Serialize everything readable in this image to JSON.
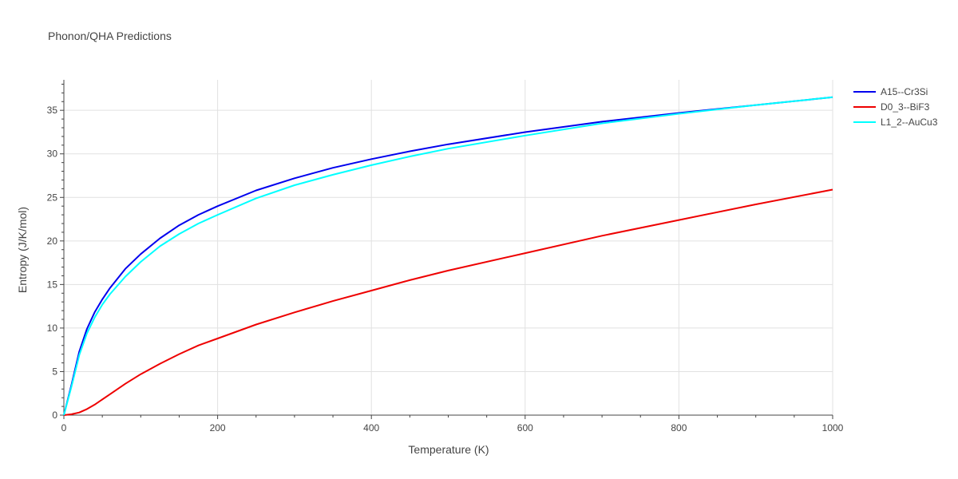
{
  "chart_data": {
    "type": "line",
    "title": "Phonon/QHA Predictions",
    "xlabel": "Temperature (K)",
    "ylabel": "Entropy (J/K/mol)",
    "xlim": [
      0,
      1000
    ],
    "ylim": [
      0,
      38.5
    ],
    "xticks": [
      0,
      200,
      400,
      600,
      800,
      1000
    ],
    "xtick_labels": [
      "0",
      "200",
      "400",
      "600",
      "800",
      "1000"
    ],
    "yticks": [
      0,
      5,
      10,
      15,
      20,
      25,
      30,
      35
    ],
    "ytick_labels": [
      "0",
      "5",
      "10",
      "15",
      "20",
      "25",
      "30",
      "35"
    ],
    "grid": true,
    "legend_position": "top-right",
    "series": [
      {
        "name": "A15--Cr3Si",
        "color": "#0000ee",
        "x": [
          0,
          10,
          20,
          30,
          40,
          50,
          60,
          80,
          100,
          125,
          150,
          175,
          200,
          250,
          300,
          350,
          400,
          450,
          500,
          600,
          700,
          800,
          900,
          1000
        ],
        "y": [
          0,
          3.5,
          7.3,
          9.9,
          11.8,
          13.3,
          14.6,
          16.8,
          18.5,
          20.3,
          21.8,
          23.0,
          24.0,
          25.8,
          27.2,
          28.4,
          29.4,
          30.3,
          31.1,
          32.5,
          33.7,
          34.7,
          35.6,
          36.5
        ]
      },
      {
        "name": "D0_3--BiF3",
        "color": "#ee0000",
        "x": [
          0,
          10,
          20,
          30,
          40,
          60,
          80,
          100,
          125,
          150,
          175,
          200,
          250,
          300,
          350,
          400,
          450,
          500,
          600,
          700,
          800,
          900,
          1000
        ],
        "y": [
          0,
          0.1,
          0.3,
          0.7,
          1.2,
          2.4,
          3.6,
          4.7,
          5.9,
          7.0,
          8.0,
          8.8,
          10.4,
          11.8,
          13.1,
          14.3,
          15.5,
          16.6,
          18.6,
          20.6,
          22.4,
          24.2,
          25.9
        ]
      },
      {
        "name": "L1_2--AuCu3",
        "color": "#00ffff",
        "x": [
          0,
          10,
          20,
          30,
          40,
          50,
          60,
          80,
          100,
          125,
          150,
          175,
          200,
          250,
          300,
          350,
          400,
          450,
          500,
          600,
          700,
          800,
          900,
          1000
        ],
        "y": [
          0,
          3.3,
          6.9,
          9.4,
          11.2,
          12.7,
          13.9,
          15.9,
          17.6,
          19.4,
          20.8,
          22.0,
          23.0,
          24.9,
          26.4,
          27.6,
          28.7,
          29.7,
          30.6,
          32.1,
          33.5,
          34.6,
          35.6,
          36.5
        ]
      }
    ]
  }
}
